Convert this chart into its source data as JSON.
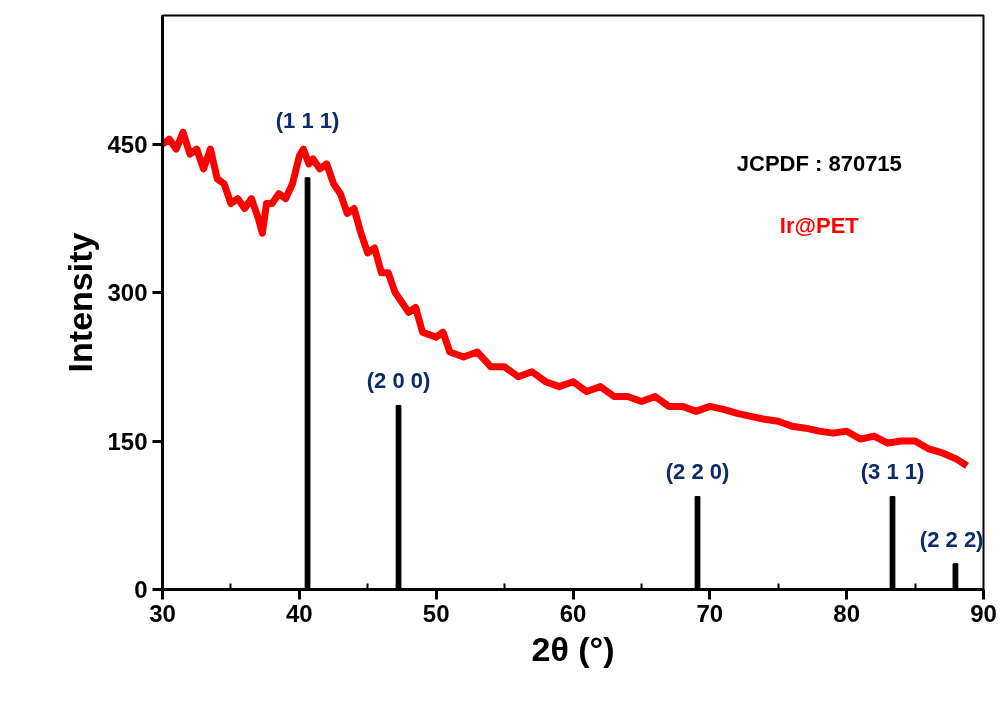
{
  "chart_data": {
    "type": "line",
    "xlabel": "2θ (°)",
    "ylabel": "Intensity",
    "xlim": [
      30,
      90
    ],
    "ylim": [
      0,
      580
    ],
    "xticks": [
      30,
      40,
      50,
      60,
      70,
      80,
      90
    ],
    "yticks": [
      0,
      150,
      300,
      450
    ],
    "grid": false,
    "legend": false,
    "series": [
      {
        "name": "Ir@PET",
        "color": "#ff0000",
        "x": [
          30,
          30.5,
          31,
          31.5,
          32,
          32.5,
          33,
          33.5,
          34,
          34.5,
          35,
          35.5,
          36,
          36.5,
          37,
          37.3,
          37.6,
          38,
          38.5,
          39,
          39.5,
          40,
          40.3,
          40.7,
          41,
          41.5,
          42,
          42.5,
          43,
          43.5,
          44,
          44.5,
          45,
          45.5,
          46,
          46.5,
          47,
          47.5,
          48,
          48.5,
          49,
          50,
          50.5,
          51,
          52,
          53,
          54,
          55,
          56,
          57,
          58,
          59,
          60,
          61,
          62,
          63,
          64,
          65,
          66,
          67,
          68,
          69,
          70,
          71,
          72,
          73,
          74,
          75,
          76,
          77,
          78,
          79,
          80,
          81,
          82,
          83,
          84,
          85,
          86,
          87,
          88,
          88.8
        ],
        "values": [
          450,
          455,
          445,
          462,
          440,
          445,
          425,
          445,
          415,
          410,
          390,
          395,
          385,
          395,
          375,
          360,
          390,
          390,
          400,
          395,
          410,
          438,
          445,
          430,
          435,
          425,
          430,
          410,
          400,
          380,
          385,
          360,
          340,
          345,
          320,
          320,
          300,
          290,
          280,
          285,
          260,
          255,
          260,
          240,
          235,
          240,
          225,
          225,
          215,
          220,
          210,
          205,
          210,
          200,
          205,
          195,
          195,
          190,
          195,
          185,
          185,
          180,
          185,
          182,
          178,
          175,
          172,
          170,
          165,
          163,
          160,
          158,
          160,
          152,
          155,
          148,
          150,
          150,
          142,
          138,
          132,
          125
        ]
      },
      {
        "type": "bar",
        "color": "#000000",
        "x": [
          40.6,
          47.25,
          69.1,
          83.35,
          87.95
        ],
        "values": [
          416,
          186,
          94,
          94,
          26
        ]
      }
    ],
    "annotations": [
      "JCPDF : 870715",
      {
        "text": "(1 1 1)",
        "x": 40.6,
        "y": 416
      },
      {
        "text": "(2 0 0)",
        "x": 47.25,
        "y": 186
      },
      {
        "text": "(2 2 0)",
        "x": 69.1,
        "y": 94
      },
      {
        "text": "(3 1 1)",
        "x": 83.35,
        "y": 94
      },
      {
        "text": "(2 2 2)",
        "x": 87.95,
        "y": 26
      }
    ]
  }
}
